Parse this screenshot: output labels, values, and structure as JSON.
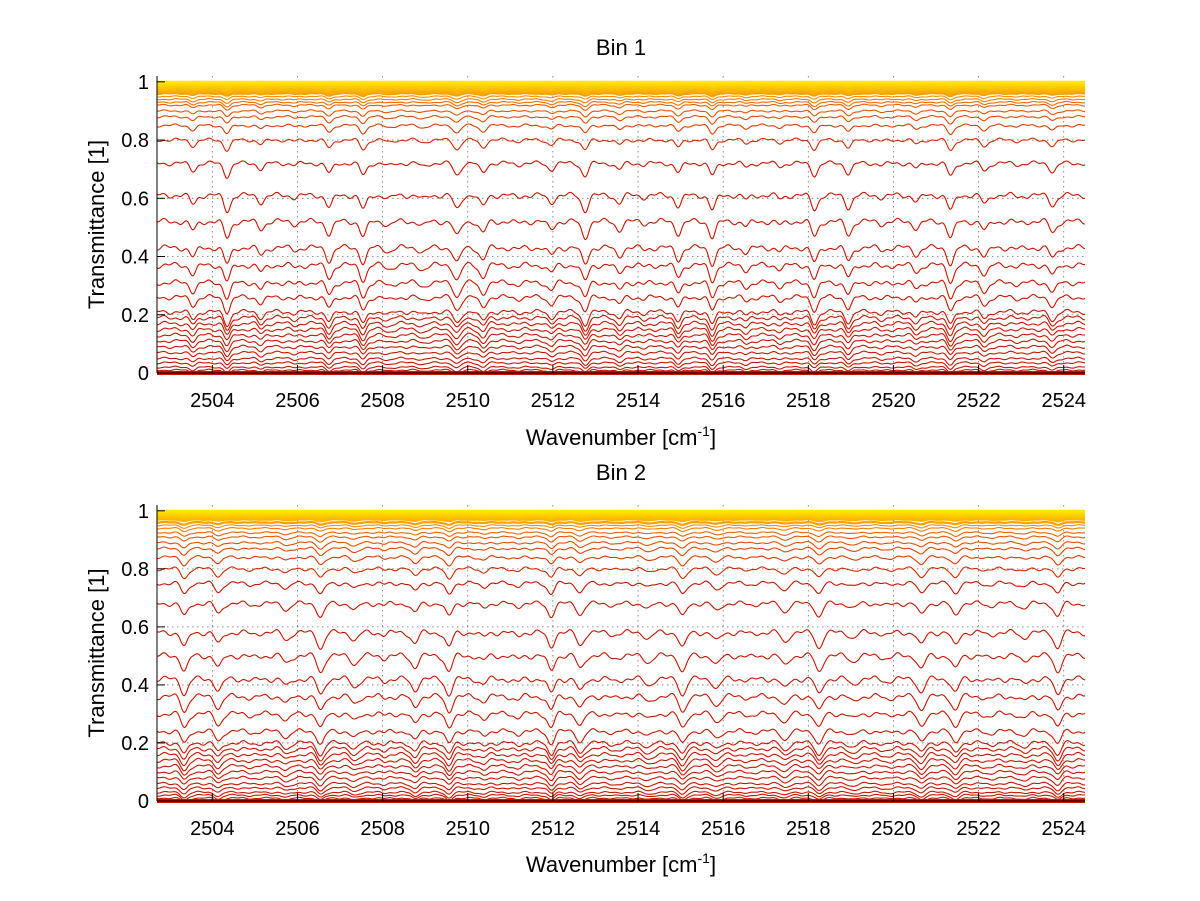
{
  "chart_data": [
    {
      "type": "line",
      "title": "Bin 1",
      "xlabel": "Wavenumber [cm",
      "xlabel_sup": "-1",
      "xlabel_end": "]",
      "ylabel": "Transmittance [1]",
      "xlim": [
        2502.7,
        2524.5
      ],
      "ylim": [
        0,
        1.02
      ],
      "x_ticks": [
        "2504",
        "2506",
        "2508",
        "2510",
        "2512",
        "2514",
        "2516",
        "2518",
        "2520",
        "2522",
        "2524"
      ],
      "y_ticks": [
        "0",
        "0.2",
        "0.4",
        "0.6",
        "0.8",
        "1"
      ],
      "grid": true,
      "colormap": "hot",
      "color_dark": "#c81400",
      "color_mid": "#ee5a00",
      "color_light": "#ffe800",
      "series_baselines": [
        0.0,
        0.005,
        0.01,
        0.02,
        0.035,
        0.05,
        0.07,
        0.09,
        0.11,
        0.13,
        0.15,
        0.17,
        0.19,
        0.21,
        0.26,
        0.31,
        0.37,
        0.43,
        0.52,
        0.61,
        0.72,
        0.8,
        0.85,
        0.88,
        0.9,
        0.92,
        0.93,
        0.94,
        0.95,
        0.96,
        0.965,
        0.97,
        0.975,
        0.98,
        0.985,
        0.99,
        0.995,
        1.0
      ],
      "absorption_line_positions": [
        2503.55,
        2504.35,
        2505.15,
        2505.95,
        2506.75,
        2507.55,
        2508.15,
        2508.95,
        2509.75,
        2510.35,
        2511.15,
        2511.95,
        2512.75,
        2513.55,
        2514.15,
        2514.95,
        2515.75,
        2516.55,
        2517.35,
        2518.15,
        2518.95,
        2519.75,
        2520.55,
        2521.35,
        2522.15,
        2522.95,
        2523.75
      ]
    },
    {
      "type": "line",
      "title": "Bin 2",
      "xlabel": "Wavenumber [cm",
      "xlabel_sup": "-1",
      "xlabel_end": "]",
      "ylabel": "Transmittance [1]",
      "xlim": [
        2502.7,
        2524.5
      ],
      "ylim": [
        0,
        1.02
      ],
      "x_ticks": [
        "2504",
        "2506",
        "2508",
        "2510",
        "2512",
        "2514",
        "2516",
        "2518",
        "2520",
        "2522",
        "2524"
      ],
      "y_ticks": [
        "0",
        "0.2",
        "0.4",
        "0.6",
        "0.8",
        "1"
      ],
      "grid": true,
      "colormap": "hot",
      "color_dark": "#c81400",
      "color_mid": "#ee5a00",
      "color_light": "#ffe800",
      "series_baselines": [
        0.0,
        0.005,
        0.01,
        0.02,
        0.03,
        0.045,
        0.06,
        0.08,
        0.1,
        0.12,
        0.14,
        0.16,
        0.18,
        0.2,
        0.24,
        0.3,
        0.36,
        0.42,
        0.5,
        0.58,
        0.68,
        0.75,
        0.8,
        0.84,
        0.87,
        0.89,
        0.91,
        0.925,
        0.94,
        0.95,
        0.96,
        0.97,
        0.975,
        0.98,
        0.985,
        0.99,
        0.995,
        1.0
      ],
      "absorption_line_positions": [
        2503.35,
        2504.15,
        2504.95,
        2505.75,
        2506.55,
        2507.35,
        2508.05,
        2508.75,
        2509.55,
        2510.35,
        2511.15,
        2511.95,
        2512.65,
        2513.45,
        2514.25,
        2515.05,
        2515.85,
        2516.65,
        2517.45,
        2518.25,
        2519.05,
        2519.85,
        2520.65,
        2521.45,
        2522.25,
        2523.05,
        2523.85
      ]
    }
  ]
}
